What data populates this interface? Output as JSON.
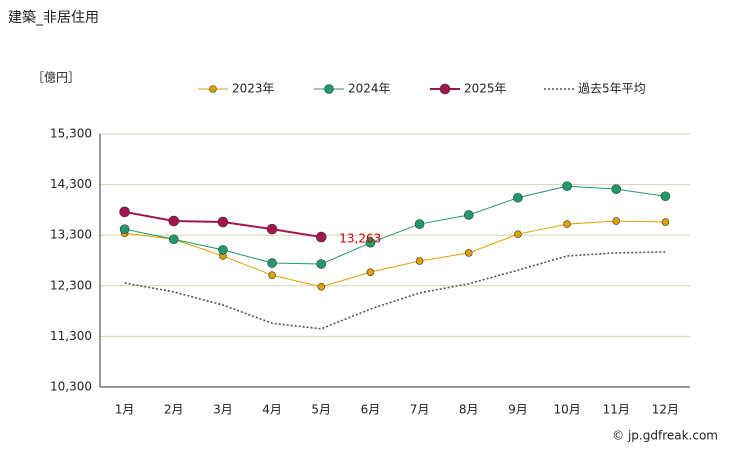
{
  "chart_data": {
    "type": "line",
    "title": "建築_非居住用",
    "y_label": "［億円］",
    "source": "© jp.gdfreak.com",
    "categories": [
      "1月",
      "2月",
      "3月",
      "4月",
      "5月",
      "6月",
      "7月",
      "8月",
      "9月",
      "10月",
      "11月",
      "12月"
    ],
    "series": [
      {
        "name": "2023年",
        "color": "#e0a000",
        "marker": true,
        "values": [
          13340,
          13220,
          12890,
          12510,
          12280,
          12570,
          12790,
          12950,
          13320,
          13520,
          13580,
          13560
        ]
      },
      {
        "name": "2024年",
        "color": "#1f9a68",
        "marker": true,
        "values": [
          13420,
          13220,
          13010,
          12750,
          12730,
          13150,
          13520,
          13700,
          14040,
          14270,
          14210,
          14070
        ]
      },
      {
        "name": "2025年",
        "color": "#a3154f",
        "marker": true,
        "values": [
          13760,
          13580,
          13560,
          13420,
          13263,
          null,
          null,
          null,
          null,
          null,
          null,
          null
        ],
        "value_labels": [
          null,
          null,
          null,
          null,
          "13,263",
          null,
          null,
          null,
          null,
          null,
          null,
          null
        ]
      },
      {
        "name": "過去5年平均",
        "color": "#555555",
        "marker": false,
        "dashed": true,
        "values": [
          12355,
          12180,
          11920,
          11560,
          11450,
          11840,
          12160,
          12340,
          12610,
          12890,
          12950,
          12970
        ]
      }
    ],
    "ylim": [
      10300,
      15300
    ],
    "yticks": [
      {
        "value": 10300,
        "label": "10,300"
      },
      {
        "value": 11300,
        "label": "11,300"
      },
      {
        "value": 12300,
        "label": "12,300"
      },
      {
        "value": 13300,
        "label": "13,300"
      },
      {
        "value": 14300,
        "label": "14,300"
      },
      {
        "value": 15300,
        "label": "15,300"
      }
    ],
    "grid": true
  }
}
